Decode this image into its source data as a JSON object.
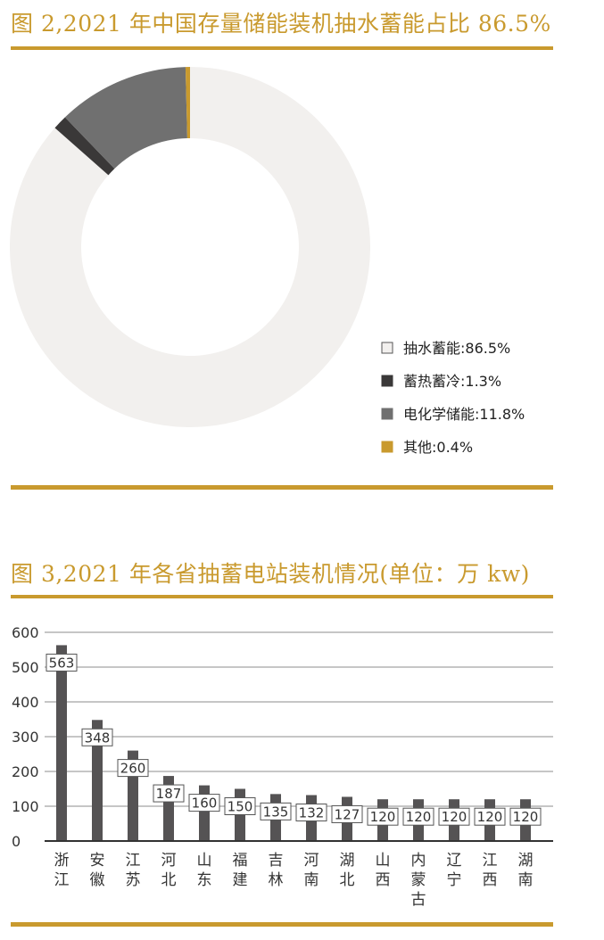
{
  "fig2": {
    "title": "图 2,2021 年中国存量储能装机抽水蓄能占比 86.5%"
  },
  "fig3": {
    "title": "图 3,2021 年各省抽蓄电站装机情况(单位：万 kw)"
  },
  "chart_data": [
    {
      "type": "pie",
      "variant": "donut",
      "title": "图 2,2021 年中国存量储能装机抽水蓄能占比 86.5%",
      "legend_position": "bottom-right",
      "slices": [
        {
          "label": "抽水蓄能:86.5%",
          "value": 86.5,
          "color": "#f2f0ee",
          "border": "#555555"
        },
        {
          "label": "蓄热蓄冷:1.3%",
          "value": 1.3,
          "color": "#3a3838",
          "border": "#3a3838"
        },
        {
          "label": "电化学储能:11.8%",
          "value": 11.8,
          "color": "#707070",
          "border": "#707070"
        },
        {
          "label": "其他:0.4%",
          "value": 0.4,
          "color": "#c99a2e",
          "border": "#c99a2e"
        }
      ]
    },
    {
      "type": "bar",
      "title": "图 3,2021 年各省抽蓄电站装机情况(单位：万 kw)",
      "xlabel": "",
      "ylabel": "",
      "ylim": [
        0,
        600
      ],
      "yticks": [
        "0",
        "100",
        "200",
        "300",
        "400",
        "500",
        "600"
      ],
      "grid": true,
      "bar_color": "#555354",
      "categories": [
        "浙江",
        "安徽",
        "江苏",
        "河北",
        "山东",
        "福建",
        "吉林",
        "河南",
        "湖北",
        "山西",
        "内蒙古",
        "辽宁",
        "江西",
        "湖南"
      ],
      "values": [
        563,
        348,
        260,
        187,
        160,
        150,
        135,
        132,
        127,
        120,
        120,
        120,
        120,
        120
      ]
    }
  ]
}
